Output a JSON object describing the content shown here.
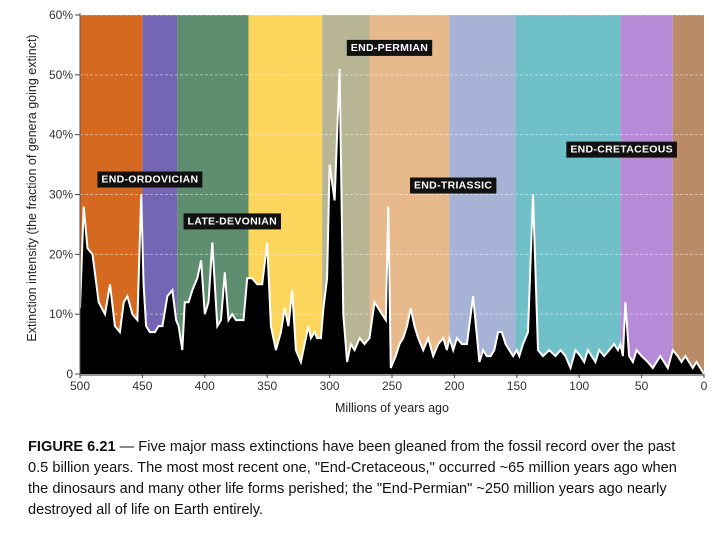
{
  "chart_data": {
    "type": "area",
    "title": "",
    "xlabel": "Millions of years ago",
    "ylabel": "Extinction intensity (the fraction of genera going extinct)",
    "xlim": [
      500,
      0
    ],
    "ylim": [
      0,
      60
    ],
    "x_ticks": [
      500,
      450,
      400,
      350,
      300,
      250,
      200,
      150,
      100,
      50,
      0
    ],
    "x_tick_labels": [
      "500",
      "450",
      "400",
      "350",
      "300",
      "250",
      "200",
      "150",
      "100",
      "50",
      "0"
    ],
    "y_ticks": [
      0,
      10,
      20,
      30,
      40,
      50,
      60
    ],
    "y_tick_labels": [
      "0",
      "10%",
      "20%",
      "30%",
      "40%",
      "50%",
      "60%"
    ],
    "grid": true,
    "bands": [
      {
        "from": 500,
        "to": 450,
        "color": "#d4691f"
      },
      {
        "from": 450,
        "to": 422,
        "color": "#7466b4"
      },
      {
        "from": 422,
        "to": 365,
        "color": "#5f8d6f"
      },
      {
        "from": 365,
        "to": 306,
        "color": "#fbd55c"
      },
      {
        "from": 306,
        "to": 268,
        "color": "#b7b594"
      },
      {
        "from": 268,
        "to": 204,
        "color": "#e8b98a"
      },
      {
        "from": 204,
        "to": 151,
        "color": "#a7b3d6"
      },
      {
        "from": 151,
        "to": 67,
        "color": "#6fc0c8"
      },
      {
        "from": 67,
        "to": 25,
        "color": "#b68ad6"
      },
      {
        "from": 25,
        "to": 0,
        "color": "#b98b66"
      }
    ],
    "series": [
      {
        "name": "Extinction intensity",
        "fill": "#000000",
        "stroke": "#ffffff",
        "x": [
          500,
          497,
          494,
          490,
          485,
          480,
          476,
          472,
          468,
          465,
          462,
          458,
          454,
          451,
          449,
          447,
          444,
          440,
          437,
          434,
          430,
          426,
          423,
          421,
          418,
          416,
          413,
          410,
          406,
          403,
          400,
          397,
          394,
          390,
          387,
          384,
          381,
          378,
          375,
          372,
          369,
          366,
          362,
          358,
          354,
          350,
          347,
          343,
          339,
          336,
          333,
          330,
          327,
          323,
          320,
          317,
          315,
          312,
          310,
          307,
          305,
          302,
          300,
          296,
          292,
          289,
          286,
          283,
          280,
          276,
          272,
          268,
          264,
          261,
          258,
          255,
          253,
          251,
          249,
          247,
          244,
          241,
          238,
          235,
          232,
          229,
          225,
          221,
          217,
          213,
          209,
          206,
          204,
          201,
          198,
          194,
          190,
          185,
          180,
          177,
          174,
          171,
          168,
          165,
          162,
          159,
          156,
          153,
          150,
          148,
          145,
          141,
          137,
          133,
          129,
          124,
          119,
          115,
          111,
          107,
          103,
          99,
          96,
          93,
          90,
          87,
          84,
          80,
          76,
          72,
          69,
          67,
          65,
          63,
          60,
          57,
          54,
          50,
          45,
          41,
          38,
          35,
          32,
          29,
          25,
          21,
          18,
          15,
          12,
          9,
          6,
          3,
          0
        ],
        "values": [
          11,
          28,
          21,
          20,
          12,
          10,
          15,
          8,
          7,
          12,
          13,
          10,
          9,
          30,
          15,
          8,
          7,
          7,
          8,
          8,
          13,
          14,
          9,
          8,
          4,
          12,
          12,
          14,
          16,
          19,
          10,
          12,
          22,
          8,
          9,
          17,
          9,
          10,
          9,
          9,
          9,
          16,
          16,
          15,
          15,
          22,
          8,
          4,
          7,
          11,
          8,
          14,
          4,
          2,
          5,
          8,
          6,
          7,
          6,
          6,
          11,
          16,
          35,
          29,
          51,
          10,
          2,
          5,
          4,
          6,
          5,
          6,
          12,
          11,
          10,
          9,
          28,
          1,
          2,
          3,
          5,
          6,
          8,
          11,
          8,
          6,
          4,
          6,
          3,
          5,
          6,
          4,
          6,
          4,
          6,
          5,
          5,
          13,
          2,
          4,
          3,
          3,
          4,
          7,
          7,
          5,
          4,
          3,
          4,
          3,
          5,
          7,
          30,
          4,
          3,
          4,
          3,
          4,
          3,
          1,
          4,
          3,
          2,
          4,
          3,
          2,
          4,
          3,
          4,
          5,
          4,
          5,
          3,
          12,
          3,
          2,
          4,
          3,
          2,
          1,
          2,
          3,
          2,
          1,
          4,
          3,
          2,
          3,
          2,
          1,
          2,
          1,
          0
        ]
      }
    ],
    "annotations": [
      {
        "text": "END-ORDOVICIAN",
        "x": 444,
        "y": 32
      },
      {
        "text": "LATE-DEVONIAN",
        "x": 378,
        "y": 25
      },
      {
        "text": "END-PERMIAN",
        "x": 252,
        "y": 54
      },
      {
        "text": "END-TRIASSIC",
        "x": 201,
        "y": 31
      },
      {
        "text": "END-CRETACEOUS",
        "x": 66,
        "y": 37
      }
    ]
  },
  "caption": {
    "label": "FIGURE 6.21",
    "text": " — Five major mass extinctions have been gleaned from the fossil record over the past 0.5 billion years.  The most most recent one, \"End-Cretaceous,\" occurred ~65 million years ago when the dinosaurs and many other life forms perished; the \"End-Permian\" ~250 million years ago nearly destroyed all of life on Earth entirely."
  }
}
